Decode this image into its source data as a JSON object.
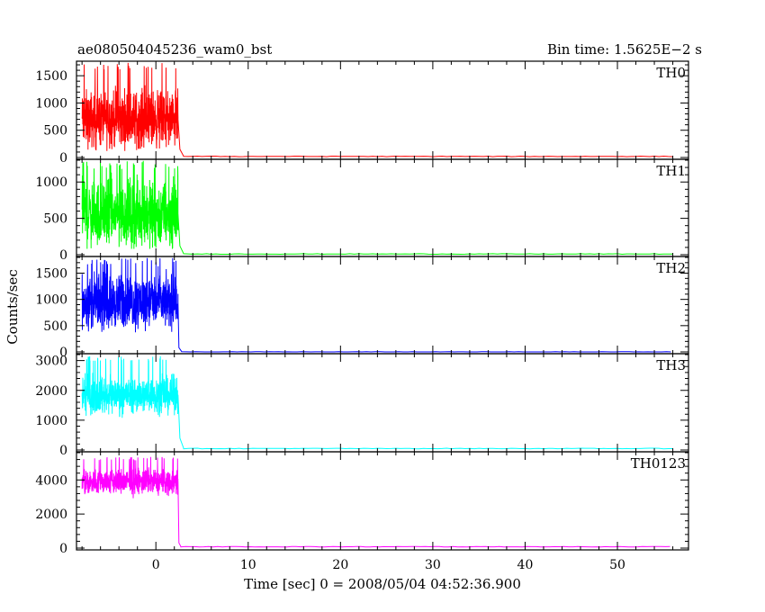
{
  "chart_data": {
    "type": "line",
    "title": "ae080504045236_wam0_bst",
    "subtitle": "Bin time: 1.5625E−2 s",
    "xlabel": "Time [sec] 0 = 2008/05/04 04:52:36.900",
    "ylabel": "Counts/sec",
    "xlim": [
      -8.6,
      57.7
    ],
    "x_ticks": [
      0,
      10,
      20,
      30,
      40,
      50
    ],
    "x_tick_labels": [
      "0",
      "10",
      "20",
      "30",
      "40",
      "50"
    ],
    "burst_x_range": [
      -8,
      2.4
    ],
    "grid": false,
    "panels": [
      {
        "name": "TH0",
        "color": "#ff0000",
        "ylim": [
          0,
          1750
        ],
        "y_ticks": [
          0,
          500,
          1000,
          1500
        ],
        "y_tick_labels": [
          "0",
          "500",
          "1000",
          "1500"
        ],
        "burst_mean": 700,
        "burst_spread": 430,
        "burst_max": 1740,
        "burst_min": 120,
        "decay": [
          [
            2.4,
            700
          ],
          [
            2.6,
            150
          ],
          [
            3.0,
            25
          ]
        ],
        "baseline": 20
      },
      {
        "name": "TH1",
        "color": "#00ff00",
        "ylim": [
          0,
          1300
        ],
        "y_ticks": [
          0,
          500,
          1000
        ],
        "y_tick_labels": [
          "0",
          "500",
          "1000"
        ],
        "burst_mean": 560,
        "burst_spread": 380,
        "burst_max": 1290,
        "burst_min": 80,
        "decay": [
          [
            2.4,
            560
          ],
          [
            2.6,
            120
          ],
          [
            3.0,
            15
          ]
        ],
        "baseline": 10
      },
      {
        "name": "TH2",
        "color": "#0000ff",
        "ylim": [
          0,
          1800
        ],
        "y_ticks": [
          0,
          500,
          1000,
          1500
        ],
        "y_tick_labels": [
          "0",
          "500",
          "1000",
          "1500"
        ],
        "burst_mean": 950,
        "burst_spread": 420,
        "burst_max": 1790,
        "burst_min": 130,
        "decay": [
          [
            2.4,
            950
          ],
          [
            2.5,
            80
          ],
          [
            2.8,
            5
          ]
        ],
        "baseline": 0
      },
      {
        "name": "TH3",
        "color": "#00ffff",
        "ylim": [
          0,
          3200
        ],
        "y_ticks": [
          0,
          1000,
          2000,
          3000
        ],
        "y_tick_labels": [
          "0",
          "1000",
          "2000",
          "3000"
        ],
        "burst_mean": 1850,
        "burst_spread": 520,
        "burst_max": 3150,
        "burst_min": 600,
        "decay": [
          [
            2.4,
            1850
          ],
          [
            2.6,
            400
          ],
          [
            3.0,
            60
          ]
        ],
        "baseline": 50
      },
      {
        "name": "TH0123",
        "color": "#ff00ff",
        "ylim": [
          0,
          5600
        ],
        "y_ticks": [
          0,
          2000,
          4000
        ],
        "y_tick_labels": [
          "0",
          "2000",
          "4000"
        ],
        "burst_mean": 3900,
        "burst_spread": 650,
        "burst_max": 5350,
        "burst_min": 2300,
        "decay": [
          [
            2.4,
            3900
          ],
          [
            2.5,
            300
          ],
          [
            2.7,
            100
          ]
        ],
        "baseline": 80
      }
    ]
  }
}
